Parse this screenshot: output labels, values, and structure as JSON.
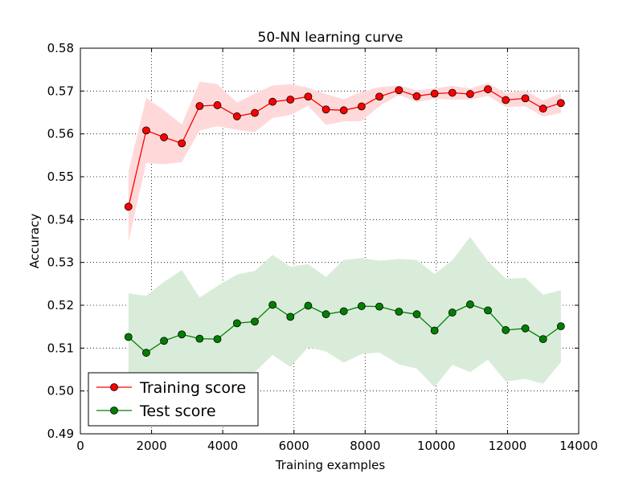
{
  "chart_data": {
    "type": "line",
    "title": "50-NN learning curve",
    "xlabel": "Training examples",
    "ylabel": "Accuracy",
    "xlim": [
      0,
      14000
    ],
    "ylim": [
      0.49,
      0.58
    ],
    "xticks": [
      0,
      2000,
      4000,
      6000,
      8000,
      10000,
      12000,
      14000
    ],
    "xtick_labels": [
      "0",
      "2000",
      "4000",
      "6000",
      "8000",
      "10000",
      "12000",
      "14000"
    ],
    "yticks": [
      0.49,
      0.5,
      0.51,
      0.52,
      0.53,
      0.54,
      0.55,
      0.56,
      0.57,
      0.58
    ],
    "ytick_labels": [
      "0.49",
      "0.50",
      "0.51",
      "0.52",
      "0.53",
      "0.54",
      "0.55",
      "0.56",
      "0.57",
      "0.58"
    ],
    "grid": true,
    "legend_position": "lower-left",
    "x": [
      1350,
      1850,
      2350,
      2850,
      3350,
      3850,
      4400,
      4900,
      5400,
      5900,
      6400,
      6900,
      7400,
      7900,
      8400,
      8950,
      9450,
      9950,
      10450,
      10950,
      11450,
      11950,
      12500,
      13000,
      13500
    ],
    "series": [
      {
        "name": "Training score",
        "color": "#ff0000",
        "band_color": "#ffd9d9",
        "values": [
          0.543,
          0.5608,
          0.5592,
          0.5578,
          0.5665,
          0.5667,
          0.5641,
          0.5649,
          0.5675,
          0.568,
          0.5687,
          0.5657,
          0.5655,
          0.5664,
          0.5687,
          0.5702,
          0.5688,
          0.5694,
          0.5696,
          0.5693,
          0.5704,
          0.5679,
          0.5683,
          0.5659,
          0.5672
        ],
        "upper": [
          0.5512,
          0.5684,
          0.5655,
          0.5622,
          0.5722,
          0.5716,
          0.5673,
          0.5694,
          0.5713,
          0.5716,
          0.5708,
          0.5693,
          0.5681,
          0.5698,
          0.5709,
          0.5713,
          0.5702,
          0.5706,
          0.5712,
          0.5706,
          0.5719,
          0.5695,
          0.5702,
          0.5678,
          0.5695
        ],
        "lower": [
          0.5348,
          0.5532,
          0.5529,
          0.5534,
          0.5608,
          0.5618,
          0.5609,
          0.5604,
          0.5637,
          0.5644,
          0.5666,
          0.5621,
          0.5629,
          0.563,
          0.5665,
          0.5691,
          0.5674,
          0.5682,
          0.568,
          0.568,
          0.5689,
          0.5663,
          0.5664,
          0.564,
          0.5649
        ]
      },
      {
        "name": "Test score",
        "color": "#008000",
        "band_color": "#d9ecd9",
        "values": [
          0.5126,
          0.5089,
          0.5117,
          0.5132,
          0.5122,
          0.5121,
          0.5158,
          0.5162,
          0.5201,
          0.5173,
          0.5199,
          0.5179,
          0.5186,
          0.5198,
          0.5197,
          0.5185,
          0.5179,
          0.5141,
          0.5183,
          0.5202,
          0.5188,
          0.5142,
          0.5146,
          0.5121,
          0.5151
        ],
        "upper": [
          0.5228,
          0.5222,
          0.5255,
          0.5282,
          0.5218,
          0.5245,
          0.5272,
          0.528,
          0.5318,
          0.529,
          0.5296,
          0.5266,
          0.5306,
          0.531,
          0.5304,
          0.5308,
          0.5306,
          0.5273,
          0.5305,
          0.536,
          0.5303,
          0.5262,
          0.5264,
          0.5225,
          0.5235
        ],
        "lower": [
          0.5024,
          0.4956,
          0.4979,
          0.4982,
          0.5026,
          0.4997,
          0.5044,
          0.5044,
          0.5084,
          0.5056,
          0.5102,
          0.5092,
          0.5066,
          0.5086,
          0.509,
          0.5062,
          0.5052,
          0.5009,
          0.5061,
          0.5044,
          0.5073,
          0.5022,
          0.5028,
          0.5017,
          0.5067
        ]
      }
    ]
  }
}
